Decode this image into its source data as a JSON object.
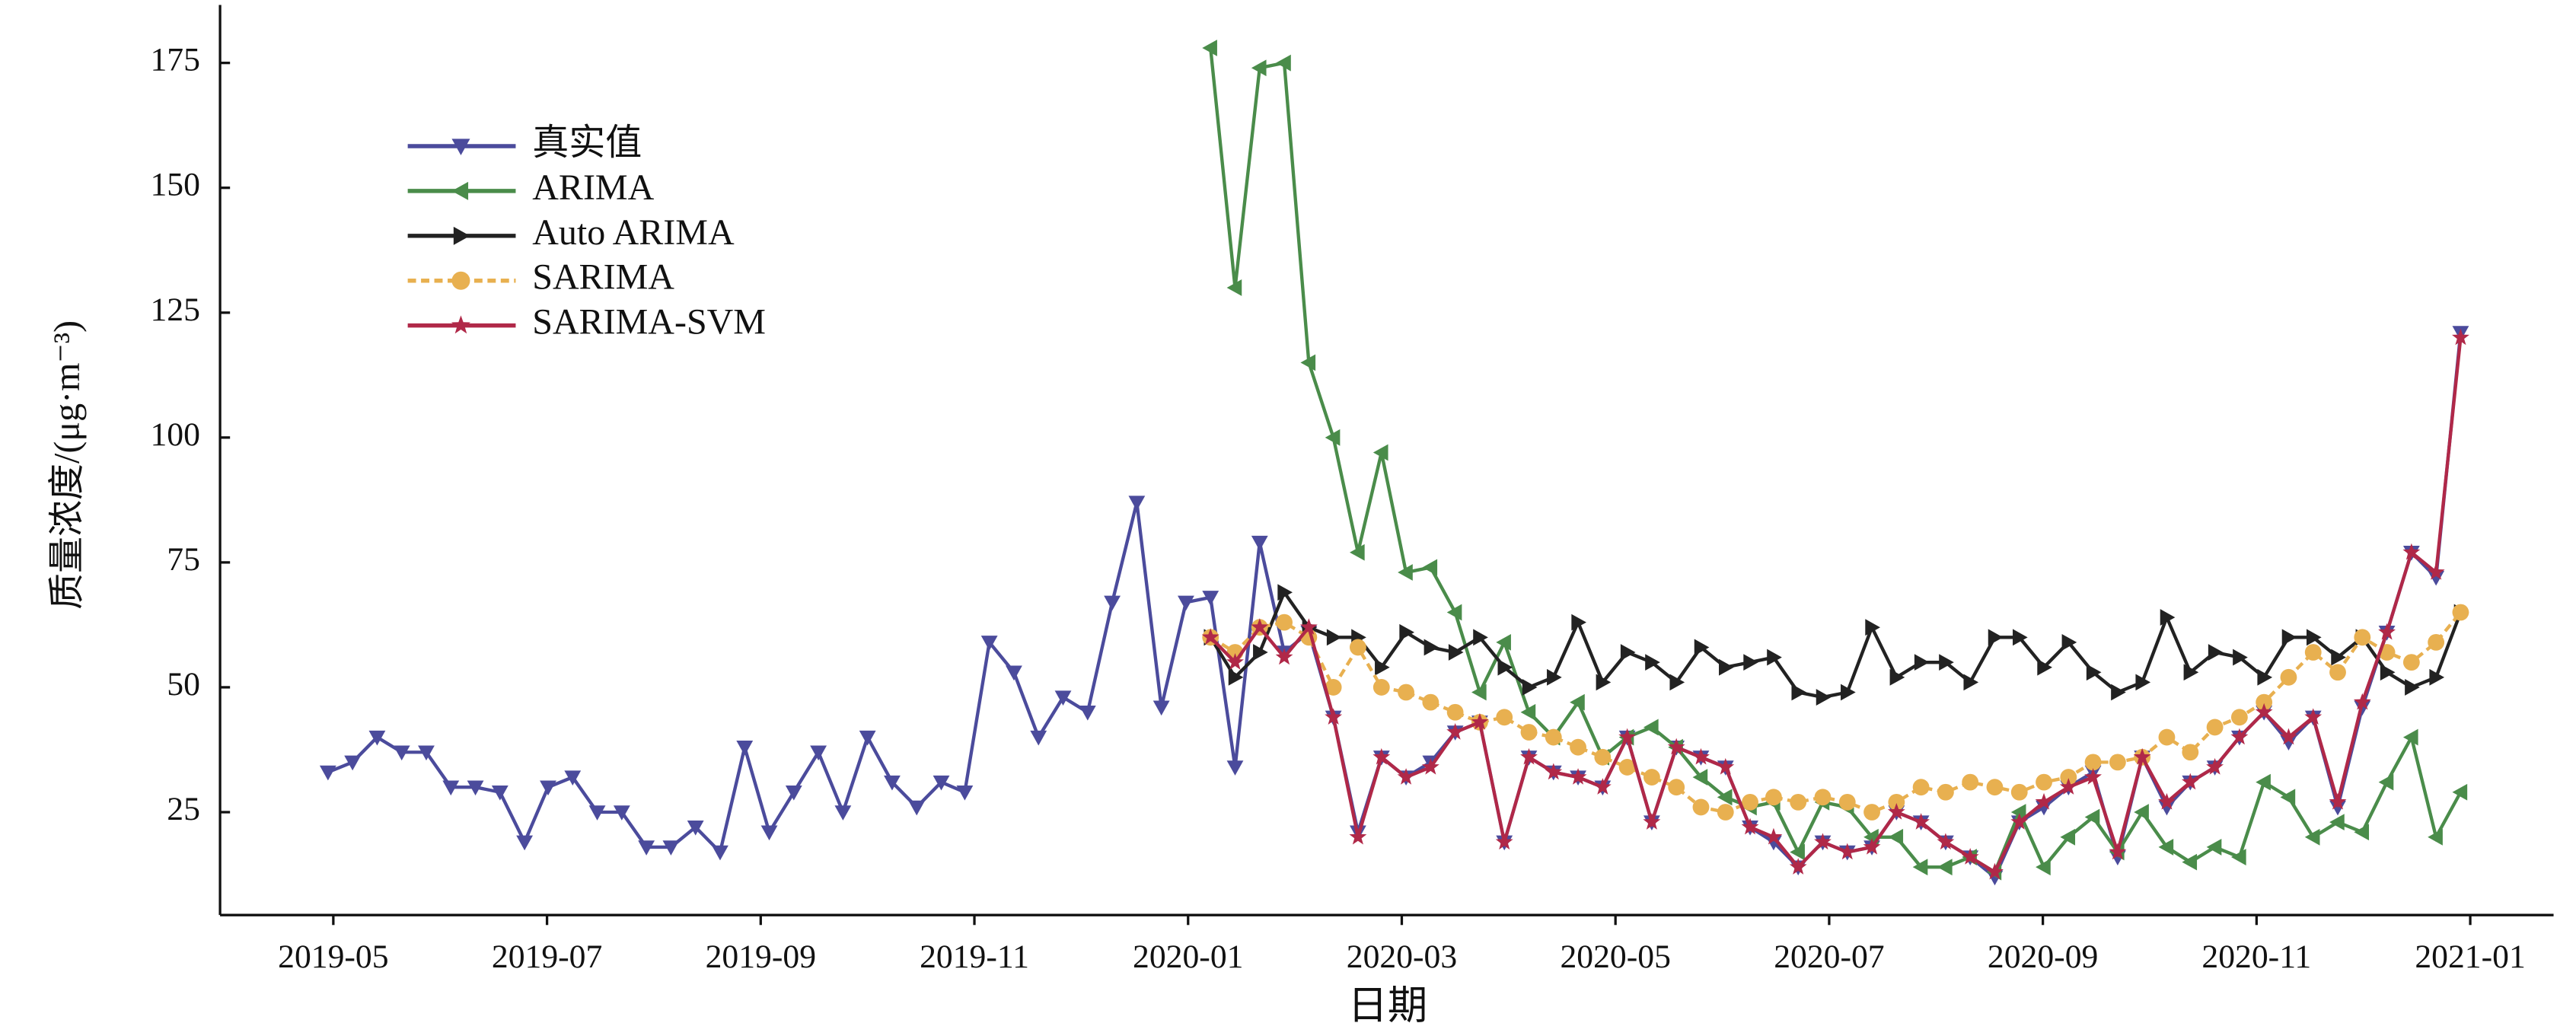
{
  "chart_data": {
    "type": "line",
    "x_label": "日期",
    "y_label": "质量浓度/(μg·m⁻³)",
    "xlim": [
      -1.06,
      20.78
    ],
    "ylim": [
      4.4,
      186.6
    ],
    "xticks": [
      {
        "value": 0,
        "label": "2019-05"
      },
      {
        "value": 2,
        "label": "2019-07"
      },
      {
        "value": 4,
        "label": "2019-09"
      },
      {
        "value": 6,
        "label": "2019-11"
      },
      {
        "value": 8,
        "label": "2020-01"
      },
      {
        "value": 10,
        "label": "2020-03"
      },
      {
        "value": 12,
        "label": "2020-05"
      },
      {
        "value": 14,
        "label": "2020-07"
      },
      {
        "value": 16,
        "label": "2020-09"
      },
      {
        "value": 18,
        "label": "2020-11"
      },
      {
        "value": 20,
        "label": "2021-01"
      }
    ],
    "yticks": [
      25,
      50,
      75,
      100,
      125,
      150,
      175
    ],
    "legend": "upper left",
    "x": [
      -0.05,
      0.18,
      0.41,
      0.64,
      0.87,
      1.1,
      1.33,
      1.56,
      1.79,
      2.01,
      2.24,
      2.47,
      2.7,
      2.93,
      3.16,
      3.39,
      3.62,
      3.85,
      4.08,
      4.31,
      4.54,
      4.77,
      5.0,
      5.23,
      5.46,
      5.69,
      5.91,
      6.14,
      6.37,
      6.6,
      6.83,
      7.06,
      7.29,
      7.52,
      7.75,
      7.98,
      8.21,
      8.44,
      8.67,
      8.9,
      9.13,
      9.36,
      9.59,
      9.81,
      10.04,
      10.27,
      10.5,
      10.73,
      10.96,
      11.19,
      11.42,
      11.65,
      11.88,
      12.11,
      12.34,
      12.57,
      12.8,
      13.03,
      13.26,
      13.48,
      13.71,
      13.94,
      14.17,
      14.4,
      14.63,
      14.86,
      15.09,
      15.32,
      15.55,
      15.78,
      16.01,
      16.24,
      16.47,
      16.7,
      16.93,
      17.16,
      17.38,
      17.61,
      17.84,
      18.07,
      18.3,
      18.53,
      18.76,
      18.99,
      19.22,
      19.45,
      19.68,
      19.91
    ],
    "series": [
      {
        "name": "真实值",
        "color": "#4b4b9c",
        "marker": "triangle-down",
        "dashed": false,
        "values": [
          33,
          35,
          40,
          37,
          37,
          30,
          30,
          29,
          19,
          30,
          32,
          25,
          25,
          18,
          18,
          22,
          17,
          38,
          21,
          29,
          37,
          25,
          40,
          31,
          26,
          31,
          29,
          59,
          53,
          40,
          48,
          45,
          67,
          87,
          46,
          67,
          68,
          34,
          79,
          57,
          61,
          44,
          21,
          36,
          32,
          35,
          41,
          43,
          19,
          36,
          33,
          32,
          30,
          40,
          23,
          38,
          36,
          34,
          22,
          19,
          14,
          19,
          17,
          18,
          25,
          23,
          19,
          16,
          12,
          23,
          26,
          30,
          33,
          16,
          36,
          26,
          31,
          34,
          40,
          45,
          39,
          44,
          26,
          46,
          61,
          77,
          72,
          121
        ]
      },
      {
        "name": "ARIMA",
        "color": "#4a8c4a",
        "marker": "triangle-left",
        "dashed": false,
        "values": [
          null,
          null,
          null,
          null,
          null,
          null,
          null,
          null,
          null,
          null,
          null,
          null,
          null,
          null,
          null,
          null,
          null,
          null,
          null,
          null,
          null,
          null,
          null,
          null,
          null,
          null,
          null,
          null,
          null,
          null,
          null,
          null,
          null,
          null,
          null,
          null,
          178,
          130,
          174,
          175,
          115,
          100,
          77,
          97,
          73,
          74,
          65,
          49,
          59,
          45,
          40,
          47,
          36,
          40,
          42,
          38,
          32,
          28,
          26,
          27,
          17,
          27,
          26,
          20,
          20,
          14,
          14,
          16,
          13,
          25,
          14,
          20,
          24,
          17,
          25,
          18,
          15,
          18,
          16,
          31,
          28,
          20,
          23,
          21,
          31,
          40,
          20,
          29
        ]
      },
      {
        "name": "Auto ARIMA",
        "color": "#222222",
        "marker": "triangle-right",
        "dashed": false,
        "values": [
          null,
          null,
          null,
          null,
          null,
          null,
          null,
          null,
          null,
          null,
          null,
          null,
          null,
          null,
          null,
          null,
          null,
          null,
          null,
          null,
          null,
          null,
          null,
          null,
          null,
          null,
          null,
          null,
          null,
          null,
          null,
          null,
          null,
          null,
          null,
          null,
          60,
          52,
          57,
          69,
          62,
          60,
          60,
          54,
          61,
          58,
          57,
          60,
          54,
          50,
          52,
          63,
          51,
          57,
          55,
          51,
          58,
          54,
          55,
          56,
          49,
          48,
          49,
          62,
          52,
          55,
          55,
          51,
          60,
          60,
          54,
          59,
          53,
          49,
          51,
          64,
          53,
          57,
          56,
          52,
          60,
          60,
          56,
          60,
          53,
          50,
          52,
          65
        ]
      },
      {
        "name": "SARIMA",
        "color": "#e8b050",
        "marker": "circle",
        "dashed": true,
        "values": [
          null,
          null,
          null,
          null,
          null,
          null,
          null,
          null,
          null,
          null,
          null,
          null,
          null,
          null,
          null,
          null,
          null,
          null,
          null,
          null,
          null,
          null,
          null,
          null,
          null,
          null,
          null,
          null,
          null,
          null,
          null,
          null,
          null,
          null,
          null,
          null,
          60,
          57,
          62,
          63,
          60,
          50,
          58,
          50,
          49,
          47,
          45,
          43,
          44,
          41,
          40,
          38,
          36,
          34,
          32,
          30,
          26,
          25,
          27,
          28,
          27,
          28,
          27,
          25,
          27,
          30,
          29,
          31,
          30,
          29,
          31,
          32,
          35,
          35,
          36,
          40,
          37,
          42,
          44,
          47,
          52,
          57,
          53,
          60,
          57,
          55,
          59,
          65
        ]
      },
      {
        "name": "SARIMA-SVM",
        "color": "#b02848",
        "marker": "star",
        "dashed": false,
        "values": [
          null,
          null,
          null,
          null,
          null,
          null,
          null,
          null,
          null,
          null,
          null,
          null,
          null,
          null,
          null,
          null,
          null,
          null,
          null,
          null,
          null,
          null,
          null,
          null,
          null,
          null,
          null,
          null,
          null,
          null,
          null,
          null,
          null,
          null,
          null,
          null,
          60,
          55,
          62,
          56,
          62,
          44,
          20,
          36,
          32,
          34,
          41,
          43,
          19,
          36,
          33,
          32,
          30,
          40,
          23,
          38,
          36,
          34,
          22,
          20,
          14,
          19,
          17,
          18,
          25,
          23,
          19,
          16,
          13,
          23,
          27,
          30,
          32,
          17,
          36,
          27,
          31,
          34,
          40,
          45,
          40,
          44,
          27,
          47,
          61,
          77,
          73,
          120
        ]
      }
    ]
  }
}
